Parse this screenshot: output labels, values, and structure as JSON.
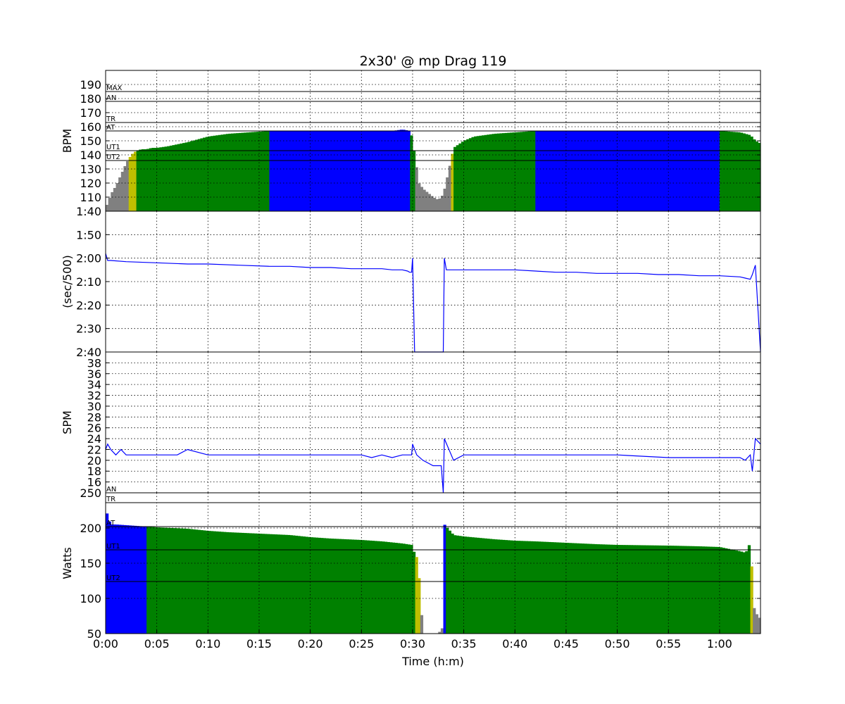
{
  "chart_data": {
    "type": "area",
    "title": "2x30' @ mp Drag 119",
    "xlabel": "Time (h:m)",
    "x_range_min": [
      0,
      64
    ],
    "x_ticks": [
      "0:00",
      "0:05",
      "0:10",
      "0:15",
      "0:20",
      "0:25",
      "0:30",
      "0:35",
      "0:40",
      "0:45",
      "0:50",
      "0:55",
      "1:00"
    ],
    "grid": true,
    "zone_colors": {
      "rest": "#808080",
      "ut2": "#bfbf00",
      "ut1": "#008000",
      "at": "#0000ff"
    },
    "line_color": "#0000ff",
    "panels": [
      {
        "name": "hr",
        "ylabel": "BPM",
        "ylim": [
          100,
          200
        ],
        "yticks": [
          "110",
          "120",
          "130",
          "140",
          "150",
          "160",
          "170",
          "180",
          "190"
        ],
        "zones": [
          {
            "label": "MAX",
            "value": 185
          },
          {
            "label": "AN",
            "value": 178
          },
          {
            "label": "TR",
            "value": 163
          },
          {
            "label": "AT",
            "value": 157
          },
          {
            "label": "UT1",
            "value": 143
          },
          {
            "label": "UT2",
            "value": 136
          }
        ],
        "x": [
          0,
          0.5,
          1,
          1.5,
          2,
          2.5,
          3,
          3.5,
          4,
          4.5,
          5,
          6,
          8,
          10,
          12,
          14,
          16,
          18,
          20,
          22,
          24,
          26,
          28,
          29,
          29.8,
          30.2,
          30.6,
          31,
          31.5,
          32,
          32.5,
          33,
          33.5,
          34,
          35,
          36,
          38,
          40,
          42,
          44,
          46,
          48,
          50,
          52,
          54,
          56,
          58,
          60,
          62,
          63,
          63.5,
          64
        ],
        "values": [
          102,
          112,
          118,
          126,
          134,
          140,
          143,
          144,
          144,
          145,
          145,
          146,
          149,
          153,
          155,
          156,
          157,
          157,
          157,
          157,
          157,
          157,
          157,
          158,
          157,
          140,
          120,
          116,
          113,
          110,
          108,
          112,
          128,
          145,
          150,
          153,
          155,
          156,
          157,
          157,
          157,
          157,
          157,
          157,
          157,
          157,
          157,
          157,
          156,
          154,
          150,
          148
        ]
      },
      {
        "name": "pace",
        "ylabel": "(sec/500)",
        "ylim_sec": [
          100,
          160
        ],
        "yticks": [
          "1:40",
          "1:50",
          "2:00",
          "2:10",
          "2:20",
          "2:30",
          "2:40"
        ],
        "x": [
          0,
          0.2,
          0.5,
          2,
          5,
          8,
          10,
          13,
          16,
          18,
          20,
          22,
          24,
          26,
          27,
          28,
          29,
          29.5,
          29.7,
          29.9,
          30,
          30.2,
          33,
          33.1,
          33.3,
          35,
          37,
          39,
          40,
          42,
          44,
          46,
          48,
          50,
          52,
          54,
          56,
          58,
          60,
          62,
          62.5,
          63,
          63.2,
          63.5,
          64
        ],
        "values": [
          118,
          121,
          121,
          121.5,
          122,
          122.5,
          122.5,
          123,
          123.5,
          123.5,
          124,
          124,
          124.5,
          124.5,
          124.5,
          125,
          125,
          125.5,
          126,
          126,
          120,
          160,
          160,
          120,
          125,
          125,
          125,
          125,
          125,
          125.5,
          126,
          126,
          126.5,
          126.5,
          126.5,
          127,
          127,
          127.5,
          127.5,
          128,
          128.5,
          129,
          127,
          123,
          160
        ]
      },
      {
        "name": "spm",
        "ylabel": "SPM",
        "ylim": [
          14,
          40
        ],
        "yticks": [
          "16",
          "18",
          "20",
          "22",
          "24",
          "26",
          "28",
          "30",
          "32",
          "34",
          "36",
          "38"
        ],
        "zones": [
          {
            "label": "AN",
            "value": 14
          }
        ],
        "x": [
          0,
          0.2,
          0.5,
          1,
          1.5,
          2,
          3,
          5,
          7,
          8,
          10,
          12,
          15,
          20,
          25,
          26,
          27,
          28,
          29,
          29.9,
          30,
          30.4,
          31,
          32,
          32.8,
          33,
          33.1,
          34,
          35,
          38,
          40,
          45,
          50,
          55,
          60,
          62,
          62.5,
          63,
          63.2,
          63.5,
          64
        ],
        "values": [
          22,
          23,
          22,
          21,
          22,
          21,
          21,
          21,
          21,
          22,
          21,
          21,
          21,
          21,
          21,
          20.5,
          21,
          20.5,
          21,
          21,
          23,
          21,
          20,
          19,
          19,
          14,
          24,
          20,
          21,
          21,
          21,
          21,
          21,
          20.5,
          20.5,
          20.5,
          20,
          21,
          18,
          24,
          23
        ]
      },
      {
        "name": "power",
        "ylabel": "Watts",
        "ylim": [
          50,
          250
        ],
        "yticks": [
          "50",
          "100",
          "150",
          "200",
          "250"
        ],
        "zones": [
          {
            "label": "TR",
            "value": 236
          },
          {
            "label": "AT",
            "value": 202
          },
          {
            "label": "UT1",
            "value": 169
          },
          {
            "label": "UT2",
            "value": 124
          }
        ],
        "x": [
          0,
          0.2,
          0.5,
          1,
          2,
          3,
          4,
          5,
          8,
          10,
          12,
          15,
          18,
          20,
          22,
          25,
          27,
          29,
          29.9,
          30,
          30.5,
          31,
          32.5,
          33,
          33.1,
          34,
          35,
          38,
          40,
          42,
          45,
          48,
          50,
          55,
          58,
          60,
          61,
          62,
          62.5,
          62.8,
          63,
          63.3,
          63.5,
          64
        ],
        "values": [
          230,
          215,
          205,
          205,
          204,
          203,
          202,
          201,
          199,
          196,
          194,
          192,
          190,
          187,
          185,
          183,
          181,
          178,
          176,
          170,
          155,
          50,
          50,
          60,
          205,
          190,
          188,
          184,
          182,
          181,
          179,
          177,
          176,
          175,
          174,
          173,
          170,
          167,
          165,
          170,
          185,
          90,
          80,
          70
        ]
      }
    ]
  }
}
